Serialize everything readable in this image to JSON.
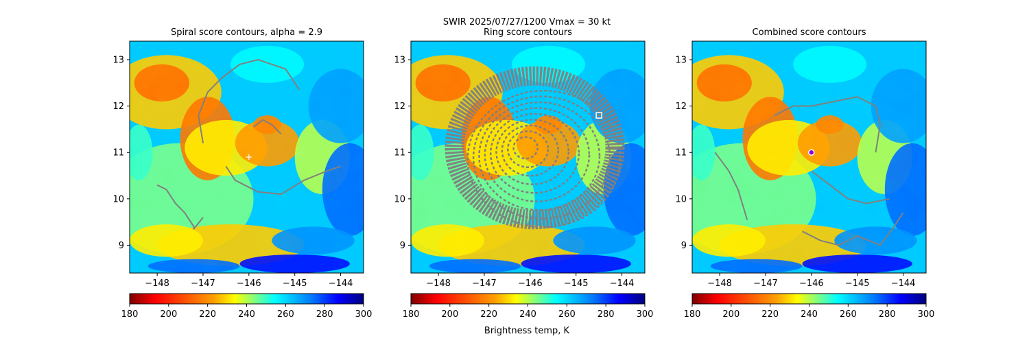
{
  "figure": {
    "suptitle_line1": "SWIR  2025/07/27/1200    Vmax = 30 kt",
    "colorbar_label": "Brightness temp, K",
    "colormap": "jet_r",
    "colorbar_colors": [
      "#7f0000",
      "#ff0000",
      "#ff9f00",
      "#ffff00",
      "#00ffff",
      "#0077ff",
      "#0000ff",
      "#00007f"
    ],
    "contour_color": "#808080",
    "center_marker_color": "#ffffff",
    "combined_marker_color": "#9400d3"
  },
  "chart_data": [
    {
      "type": "heatmap",
      "title": "Spiral score contours, alpha =  2.9",
      "xlim": [
        -148.6,
        -143.5
      ],
      "ylim": [
        8.4,
        13.4
      ],
      "xticks": [
        -148,
        -147,
        -146,
        -145,
        -144
      ],
      "yticks": [
        9,
        10,
        11,
        12,
        13
      ],
      "xtick_labels": [
        "−148",
        "−147",
        "−146",
        "−145",
        "−144"
      ],
      "ytick_labels": [
        "9",
        "10",
        "11",
        "12",
        "13"
      ],
      "colorbar": {
        "min": 180,
        "max": 300,
        "ticks": [
          180,
          200,
          220,
          240,
          260,
          280,
          300
        ]
      },
      "contours": [
        {
          "lon": [
            -148.0,
            -147.8,
            -147.6,
            -147.4,
            -147.3,
            -147.2,
            -147.2,
            -147.0
          ],
          "lat": [
            10.3,
            10.2,
            9.9,
            9.7,
            9.55,
            9.4,
            9.35,
            9.6
          ]
        },
        {
          "lon": [
            -147.0,
            -147.1,
            -146.9,
            -146.6,
            -146.2,
            -145.8,
            -145.2,
            -144.9
          ],
          "lat": [
            11.2,
            11.8,
            12.3,
            12.6,
            12.9,
            13.0,
            12.8,
            12.35
          ]
        },
        {
          "lon": [
            -145.9,
            -145.7,
            -145.5,
            -145.3
          ],
          "lat": [
            11.55,
            11.7,
            11.6,
            11.4
          ]
        },
        {
          "lon": [
            -146.5,
            -146.3,
            -145.8,
            -145.3,
            -144.8,
            -144.3,
            -144.0
          ],
          "lat": [
            10.7,
            10.4,
            10.15,
            10.1,
            10.4,
            10.6,
            10.7
          ]
        }
      ],
      "markers": [
        {
          "lon": -146.0,
          "lat": 10.9,
          "symbol": "+"
        }
      ]
    },
    {
      "type": "heatmap",
      "title": "Ring score contours",
      "xlim": [
        -148.6,
        -143.5
      ],
      "ylim": [
        8.4,
        13.4
      ],
      "xticks": [
        -148,
        -147,
        -146,
        -145,
        -144
      ],
      "yticks": [
        9,
        10,
        11,
        12,
        13
      ],
      "xtick_labels": [
        "−148",
        "−147",
        "−146",
        "−145",
        "−144"
      ],
      "ytick_labels": [
        "9",
        "10",
        "11",
        "12",
        "13"
      ],
      "colorbar": {
        "min": 180,
        "max": 300,
        "ticks": [
          180,
          200,
          220,
          240,
          260,
          280,
          300
        ]
      },
      "ring_region": {
        "lon_center": -145.9,
        "lat_center": 11.1,
        "lon_radius": 1.75,
        "lat_radius": 1.55
      },
      "markers": [
        {
          "lon": -144.5,
          "lat": 11.8,
          "symbol": "square"
        }
      ]
    },
    {
      "type": "heatmap",
      "title": "Combined score contours",
      "xlim": [
        -148.6,
        -143.5
      ],
      "ylim": [
        8.4,
        13.4
      ],
      "xticks": [
        -148,
        -147,
        -146,
        -145,
        -144
      ],
      "yticks": [
        9,
        10,
        11,
        12,
        13
      ],
      "xtick_labels": [
        "−148",
        "−147",
        "−146",
        "−145",
        "−144"
      ],
      "ytick_labels": [
        "9",
        "10",
        "11",
        "12",
        "13"
      ],
      "colorbar": {
        "min": 180,
        "max": 300,
        "ticks": [
          180,
          200,
          220,
          240,
          260,
          280,
          300
        ]
      },
      "contours": [
        {
          "lon": [
            -146.8,
            -146.4,
            -146.0,
            -145.5,
            -145.0,
            -144.6,
            -144.5,
            -144.6
          ],
          "lat": [
            11.8,
            12.0,
            12.0,
            12.1,
            12.2,
            12.0,
            11.6,
            11.0
          ]
        },
        {
          "lon": [
            -146.0,
            -145.6,
            -145.2,
            -144.8,
            -144.3
          ],
          "lat": [
            10.6,
            10.3,
            10.0,
            9.9,
            10.0
          ]
        },
        {
          "lon": [
            -148.1,
            -147.8,
            -147.6,
            -147.4
          ],
          "lat": [
            11.0,
            10.6,
            10.2,
            9.55
          ]
        },
        {
          "lon": [
            -146.2,
            -145.8,
            -145.4,
            -145.0,
            -144.5,
            -144.2,
            -144.0
          ],
          "lat": [
            9.3,
            9.1,
            9.0,
            9.2,
            9.0,
            9.4,
            9.7
          ]
        }
      ],
      "markers": [
        {
          "lon": -146.0,
          "lat": 11.0,
          "symbol": "circle"
        }
      ]
    }
  ]
}
